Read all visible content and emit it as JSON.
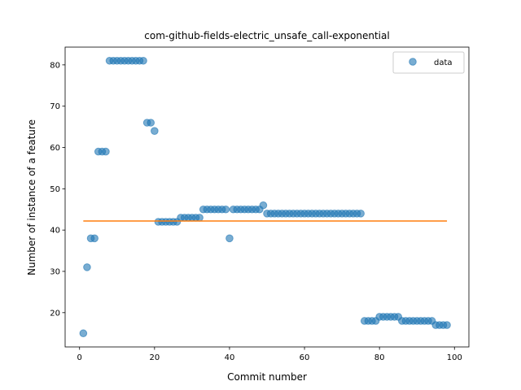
{
  "chart_data": {
    "type": "scatter",
    "title": "com-github-fields-electric_unsafe_call-exponential",
    "xlabel": "Commit number",
    "ylabel": "Number of instance of a feature",
    "xlim": [
      -3.85,
      103.85
    ],
    "ylim": [
      11.7,
      84.3
    ],
    "xticks": [
      0,
      20,
      40,
      60,
      80,
      100
    ],
    "yticks": [
      20,
      30,
      40,
      50,
      60,
      70,
      80
    ],
    "grid": false,
    "legend_position": "top-right",
    "colors": {
      "data": "#1f77b4",
      "fit": "#ff7f0e"
    },
    "series": [
      {
        "name": "data",
        "kind": "scatter",
        "x": [
          1,
          2,
          3,
          4,
          5,
          6,
          7,
          8,
          9,
          10,
          11,
          12,
          13,
          14,
          15,
          16,
          17,
          18,
          19,
          20,
          21,
          22,
          23,
          24,
          25,
          26,
          27,
          28,
          29,
          30,
          31,
          32,
          33,
          34,
          35,
          36,
          37,
          38,
          39,
          40,
          41,
          42,
          43,
          44,
          45,
          46,
          47,
          48,
          49,
          50,
          51,
          52,
          53,
          54,
          55,
          56,
          57,
          58,
          59,
          60,
          61,
          62,
          63,
          64,
          65,
          66,
          67,
          68,
          69,
          70,
          71,
          72,
          73,
          74,
          75,
          76,
          77,
          78,
          79,
          80,
          81,
          82,
          83,
          84,
          85,
          86,
          87,
          88,
          89,
          90,
          91,
          92,
          93,
          94,
          95,
          96,
          97,
          98
        ],
        "y": [
          15,
          31,
          38,
          38,
          59,
          59,
          59,
          81,
          81,
          81,
          81,
          81,
          81,
          81,
          81,
          81,
          81,
          66,
          66,
          64,
          42,
          42,
          42,
          42,
          42,
          42,
          43,
          43,
          43,
          43,
          43,
          43,
          45,
          45,
          45,
          45,
          45,
          45,
          45,
          38,
          45,
          45,
          45,
          45,
          45,
          45,
          45,
          45,
          46,
          44,
          44,
          44,
          44,
          44,
          44,
          44,
          44,
          44,
          44,
          44,
          44,
          44,
          44,
          44,
          44,
          44,
          44,
          44,
          44,
          44,
          44,
          44,
          44,
          44,
          44,
          18,
          18,
          18,
          18,
          19,
          19,
          19,
          19,
          19,
          19,
          18,
          18,
          18,
          18,
          18,
          18,
          18,
          18,
          18,
          17,
          17,
          17,
          17
        ]
      },
      {
        "name": "",
        "kind": "line",
        "x": [
          1,
          98
        ],
        "y": [
          42.2,
          42.2
        ]
      }
    ]
  }
}
